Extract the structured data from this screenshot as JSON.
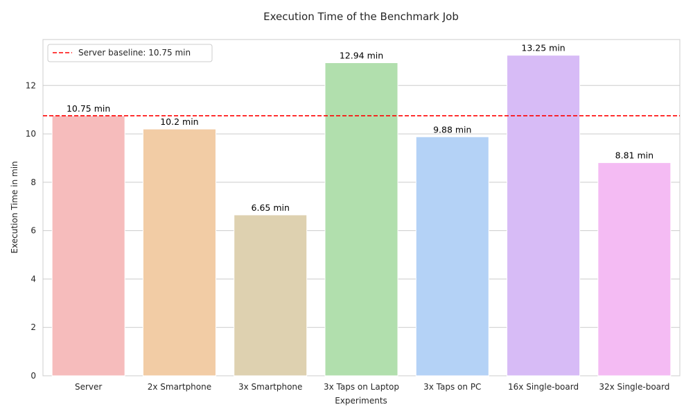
{
  "chart_data": {
    "type": "bar",
    "title": "Execution Time of the Benchmark Job",
    "xlabel": "Experiments",
    "ylabel": "Execution Time in min",
    "categories": [
      "Server",
      "2x Smartphone",
      "3x Smartphone",
      "3x Taps on Laptop",
      "3x Taps on PC",
      "16x Single-board",
      "32x Single-board"
    ],
    "values": [
      10.75,
      10.2,
      6.65,
      12.94,
      9.88,
      13.25,
      8.81
    ],
    "data_labels": [
      "10.75 min",
      "10.2 min",
      "6.65 min",
      "12.94 min",
      "9.88 min",
      "13.25 min",
      "8.81 min"
    ],
    "colors": [
      "#f6bcbc",
      "#f2cca5",
      "#ded1b0",
      "#b1dfad",
      "#b4d2f6",
      "#d7bbf6",
      "#f4bbf3"
    ],
    "ylim": [
      0,
      13.9
    ],
    "yticks": [
      0,
      2,
      4,
      6,
      8,
      10,
      12
    ],
    "grid": true,
    "baseline": {
      "value": 10.75,
      "label": "Server baseline: 10.75 min",
      "color": "#ff0000",
      "style": "dashed"
    },
    "legend_position": "top-left"
  }
}
